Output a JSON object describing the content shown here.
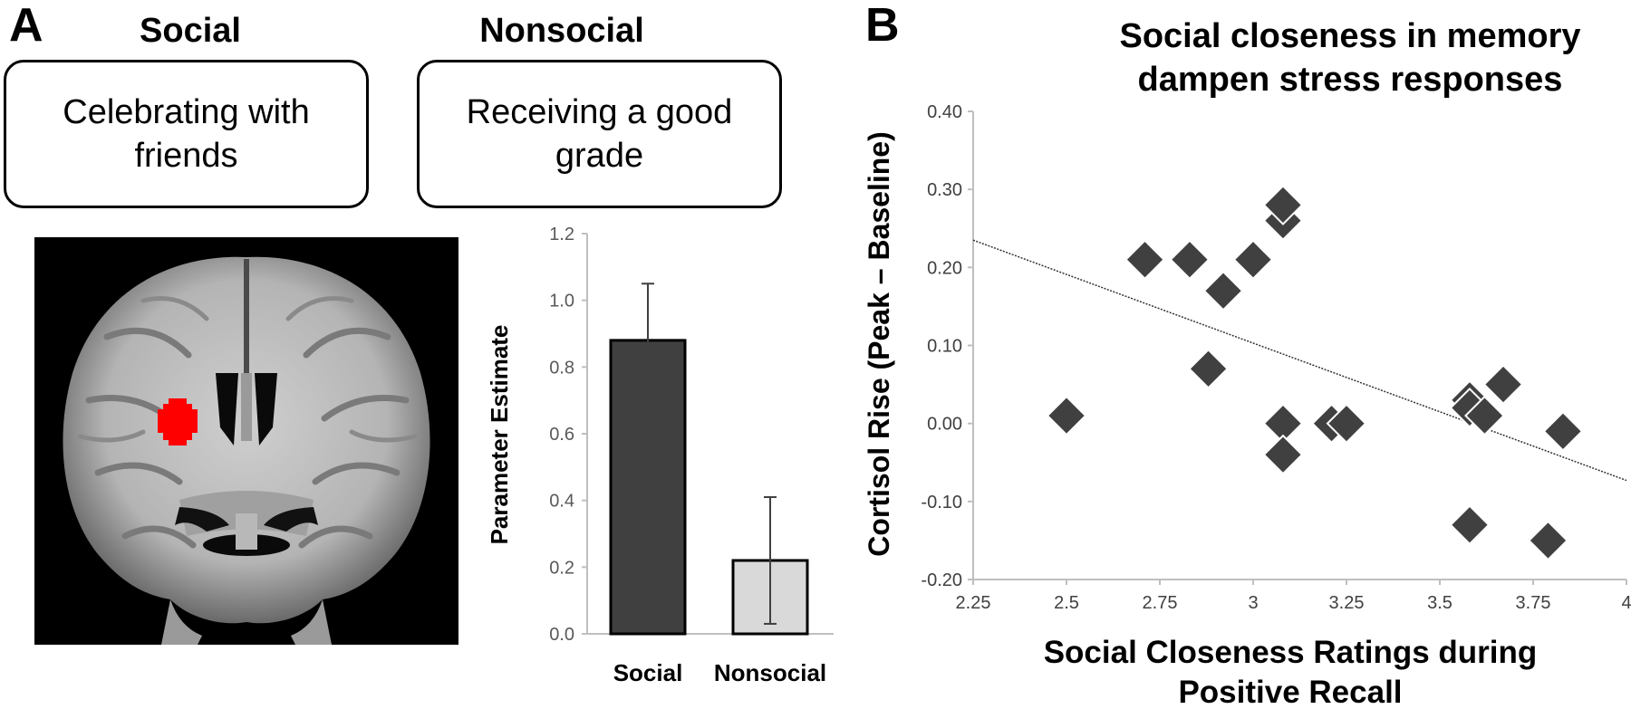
{
  "panel_a": {
    "letter": "A",
    "conditions": [
      {
        "title": "Social",
        "example": "Celebrating with friends"
      },
      {
        "title": "Nonsocial",
        "example": "Receiving a good grade"
      }
    ],
    "brain_image": {
      "description_icon": "brain-coronal-slice-icon",
      "activation_color": "#ff0000"
    }
  },
  "panel_b": {
    "letter": "B"
  },
  "chart_data": [
    {
      "type": "bar",
      "title": "",
      "xlabel": "",
      "ylabel": "Parameter Estimate",
      "categories": [
        "Social",
        "Nonsocial"
      ],
      "values": [
        0.88,
        0.22
      ],
      "error": [
        0.17,
        0.19
      ],
      "ylim": [
        0,
        1.2
      ],
      "yticks": [
        "0.0",
        "0.2",
        "0.4",
        "0.6",
        "0.8",
        "1.0",
        "1.2"
      ],
      "colors": [
        "#404040",
        "#d9d9d9"
      ]
    },
    {
      "type": "scatter",
      "title": "Social closeness in memory dampen stress responses",
      "xlabel": "Social Closeness Ratings during Positive Recall",
      "ylabel": "Cortisol Rise (Peak – Baseline)",
      "xlim": [
        2.25,
        4
      ],
      "ylim": [
        -0.2,
        0.4
      ],
      "xticks": [
        "2.25",
        "2.5",
        "2.75",
        "3",
        "3.25",
        "3.5",
        "3.75",
        "4"
      ],
      "yticks": [
        "-0.20",
        "-0.10",
        "0.00",
        "0.10",
        "0.20",
        "0.30",
        "0.40"
      ],
      "marker_color": "#404040",
      "points": [
        {
          "x": 2.5,
          "y": 0.01
        },
        {
          "x": 2.71,
          "y": 0.21
        },
        {
          "x": 2.83,
          "y": 0.21
        },
        {
          "x": 2.88,
          "y": 0.07
        },
        {
          "x": 2.92,
          "y": 0.17
        },
        {
          "x": 3.0,
          "y": 0.21
        },
        {
          "x": 3.08,
          "y": 0.26
        },
        {
          "x": 3.08,
          "y": 0.28
        },
        {
          "x": 3.08,
          "y": 0.0
        },
        {
          "x": 3.08,
          "y": -0.04
        },
        {
          "x": 3.21,
          "y": 0.0
        },
        {
          "x": 3.25,
          "y": 0.0
        },
        {
          "x": 3.58,
          "y": 0.03
        },
        {
          "x": 3.58,
          "y": 0.02
        },
        {
          "x": 3.62,
          "y": 0.01
        },
        {
          "x": 3.67,
          "y": 0.05
        },
        {
          "x": 3.83,
          "y": -0.01
        },
        {
          "x": 3.58,
          "y": -0.13
        },
        {
          "x": 3.79,
          "y": -0.15
        }
      ],
      "trendline": {
        "x1": 2.25,
        "y1": 0.235,
        "x2": 4.0,
        "y2": -0.073
      }
    }
  ]
}
